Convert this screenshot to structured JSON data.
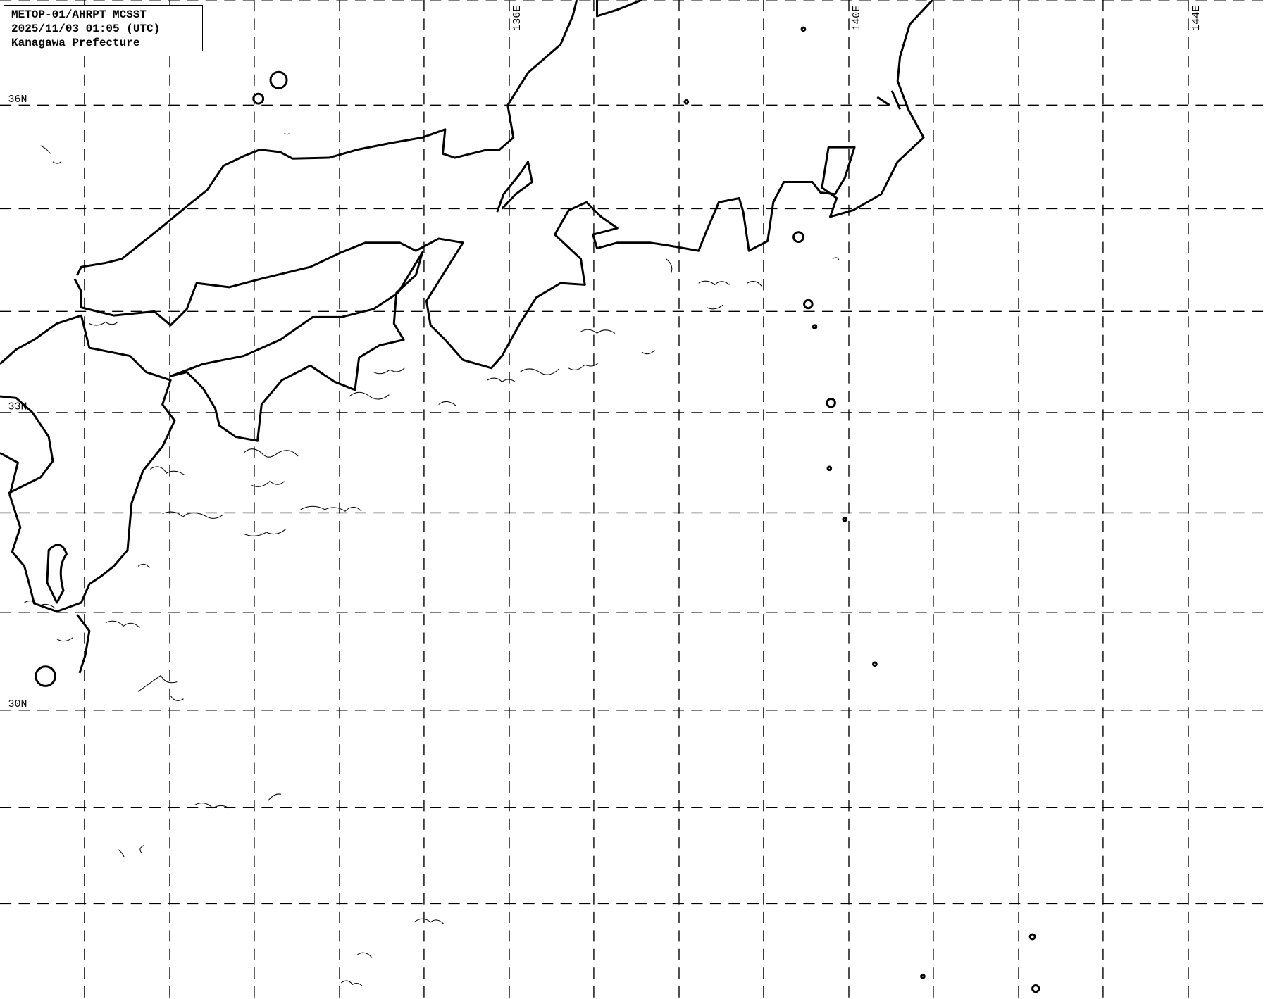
{
  "info_box": {
    "line1": "METOP-01/AHRPT MCSST",
    "line2": "2025/11/03 01:05 (UTC)",
    "line3": "Kanagawa Prefecture"
  },
  "latitude_labels": [
    "36N",
    "33N",
    "30N"
  ],
  "longitude_labels": [
    "136E",
    "140E",
    "144E"
  ],
  "colors": {
    "background": "#ffffff",
    "lines": "#000000"
  }
}
